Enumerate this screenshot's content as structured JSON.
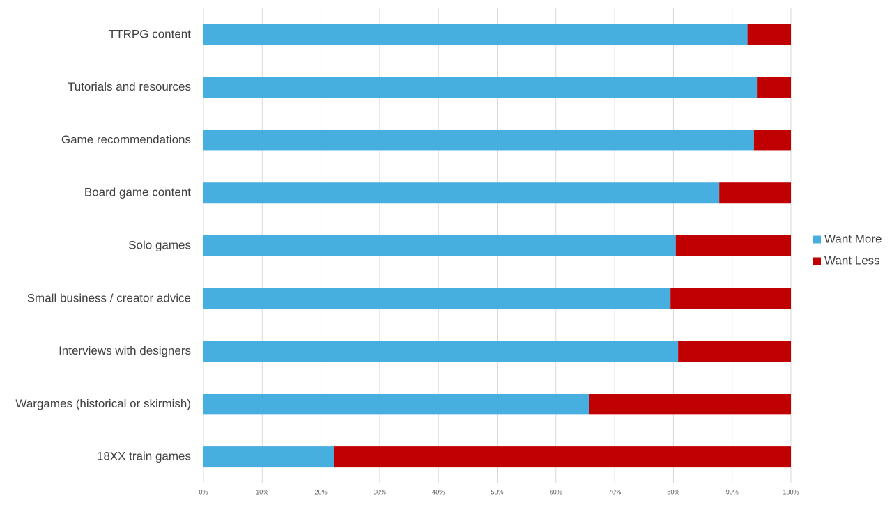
{
  "chart_data": {
    "type": "bar",
    "orientation": "horizontal",
    "stacked": true,
    "categories": [
      "TTRPG content",
      "Tutorials and resources",
      "Game recommendations",
      "Board game content",
      "Solo games",
      "Small business / creator advice",
      "Interviews with designers",
      "Wargames (historical or skirmish)",
      "18XX train games"
    ],
    "series": [
      {
        "name": "Want More",
        "color": "#47aee0",
        "values": [
          92.6,
          94.2,
          93.7,
          87.8,
          80.4,
          79.5,
          80.8,
          65.6,
          22.3
        ]
      },
      {
        "name": "Want Less",
        "color": "#c00000",
        "values": [
          7.4,
          5.8,
          6.3,
          12.2,
          19.6,
          20.5,
          19.2,
          34.4,
          77.7
        ]
      }
    ],
    "xlim": [
      0,
      100
    ],
    "xticks": [
      {
        "value": 0,
        "label": "0%"
      },
      {
        "value": 10,
        "label": "10%"
      },
      {
        "value": 20,
        "label": "20%"
      },
      {
        "value": 30,
        "label": "30%"
      },
      {
        "value": 40,
        "label": "40%"
      },
      {
        "value": 50,
        "label": "50%"
      },
      {
        "value": 60,
        "label": "60%"
      },
      {
        "value": 70,
        "label": "70%"
      },
      {
        "value": 80,
        "label": "80%"
      },
      {
        "value": 90,
        "label": "90%"
      },
      {
        "value": 100,
        "label": "100%"
      }
    ],
    "grid": true,
    "legend": "right"
  }
}
